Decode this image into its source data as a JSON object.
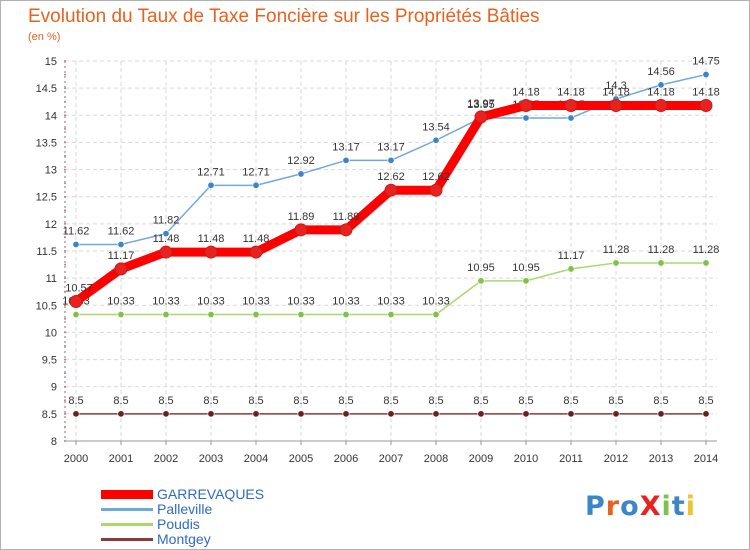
{
  "title": "Evolution du Taux de Taxe Foncière sur les Propriétés Bâties",
  "subtitle": "(en %)",
  "logo_text": "ProXiti",
  "chart_data": {
    "type": "line",
    "title": "Evolution du Taux de Taxe Foncière sur les Propriétés Bâties",
    "ylabel": "(en %)",
    "x": [
      2000,
      2001,
      2002,
      2003,
      2004,
      2005,
      2006,
      2007,
      2008,
      2009,
      2010,
      2011,
      2012,
      2013,
      2014
    ],
    "x_tick_labels": [
      "2000",
      "2001",
      "2002",
      "2003",
      "2004",
      "2005",
      "2006",
      "2007",
      "2008",
      "2009",
      "2010",
      "2011",
      "2012",
      "2013",
      "2014"
    ],
    "ylim": [
      8,
      15
    ],
    "y_ticks": [
      "8",
      "8.5",
      "9",
      "9.5",
      "10",
      "10.5",
      "11",
      "11.5",
      "12",
      "12.5",
      "13",
      "13.5",
      "14",
      "14.5",
      "15"
    ],
    "grid": true,
    "legend_position": "bottom-left",
    "series": [
      {
        "name": "GARREVAQUES",
        "color": "#ff0000",
        "marker": "#e8231f",
        "bold": true,
        "values": [
          10.57,
          11.17,
          11.48,
          11.48,
          11.48,
          11.89,
          11.89,
          12.62,
          12.62,
          13.97,
          14.18,
          14.18,
          14.18,
          14.18,
          14.18
        ],
        "labels": [
          "10.57",
          "11.17",
          "11.48",
          "11.48",
          "11.48",
          "11.89",
          "11.89",
          "12.62",
          "12.62",
          "13.97",
          "14.18",
          "14.18",
          "14.18",
          "14.18",
          "14.18"
        ]
      },
      {
        "name": "Palleville",
        "color": "#6fa8dc",
        "marker": "#3d85c6",
        "values": [
          11.62,
          11.62,
          11.82,
          12.71,
          12.71,
          12.92,
          13.17,
          13.17,
          13.54,
          13.95,
          13.95,
          13.95,
          14.3,
          14.56,
          14.75
        ],
        "labels": [
          "11.62",
          "11.62",
          "11.82",
          "12.71",
          "12.71",
          "12.92",
          "13.17",
          "13.17",
          "13.54",
          "13.95",
          "13.95",
          "13.95",
          "14.3",
          "14.56",
          "14.75"
        ]
      },
      {
        "name": "Poudis",
        "color": "#a8d86e",
        "marker": "#7dc34a",
        "values": [
          10.33,
          10.33,
          10.33,
          10.33,
          10.33,
          10.33,
          10.33,
          10.33,
          10.33,
          10.95,
          10.95,
          11.17,
          11.28,
          11.28,
          11.28
        ],
        "labels": [
          "10.33",
          "10.33",
          "10.33",
          "10.33",
          "10.33",
          "10.33",
          "10.33",
          "10.33",
          "10.33",
          "10.95",
          "10.95",
          "11.17",
          "11.28",
          "11.28",
          "11.28"
        ]
      },
      {
        "name": "Montgey",
        "color": "#8b3a3a",
        "marker": "#6b1f1f",
        "values": [
          8.5,
          8.5,
          8.5,
          8.5,
          8.5,
          8.5,
          8.5,
          8.5,
          8.5,
          8.5,
          8.5,
          8.5,
          8.5,
          8.5,
          8.5
        ],
        "labels": [
          "8.5",
          "8.5",
          "8.5",
          "8.5",
          "8.5",
          "8.5",
          "8.5",
          "8.5",
          "8.5",
          "8.5",
          "8.5",
          "8.5",
          "8.5",
          "8.5",
          "8.5"
        ]
      }
    ]
  }
}
